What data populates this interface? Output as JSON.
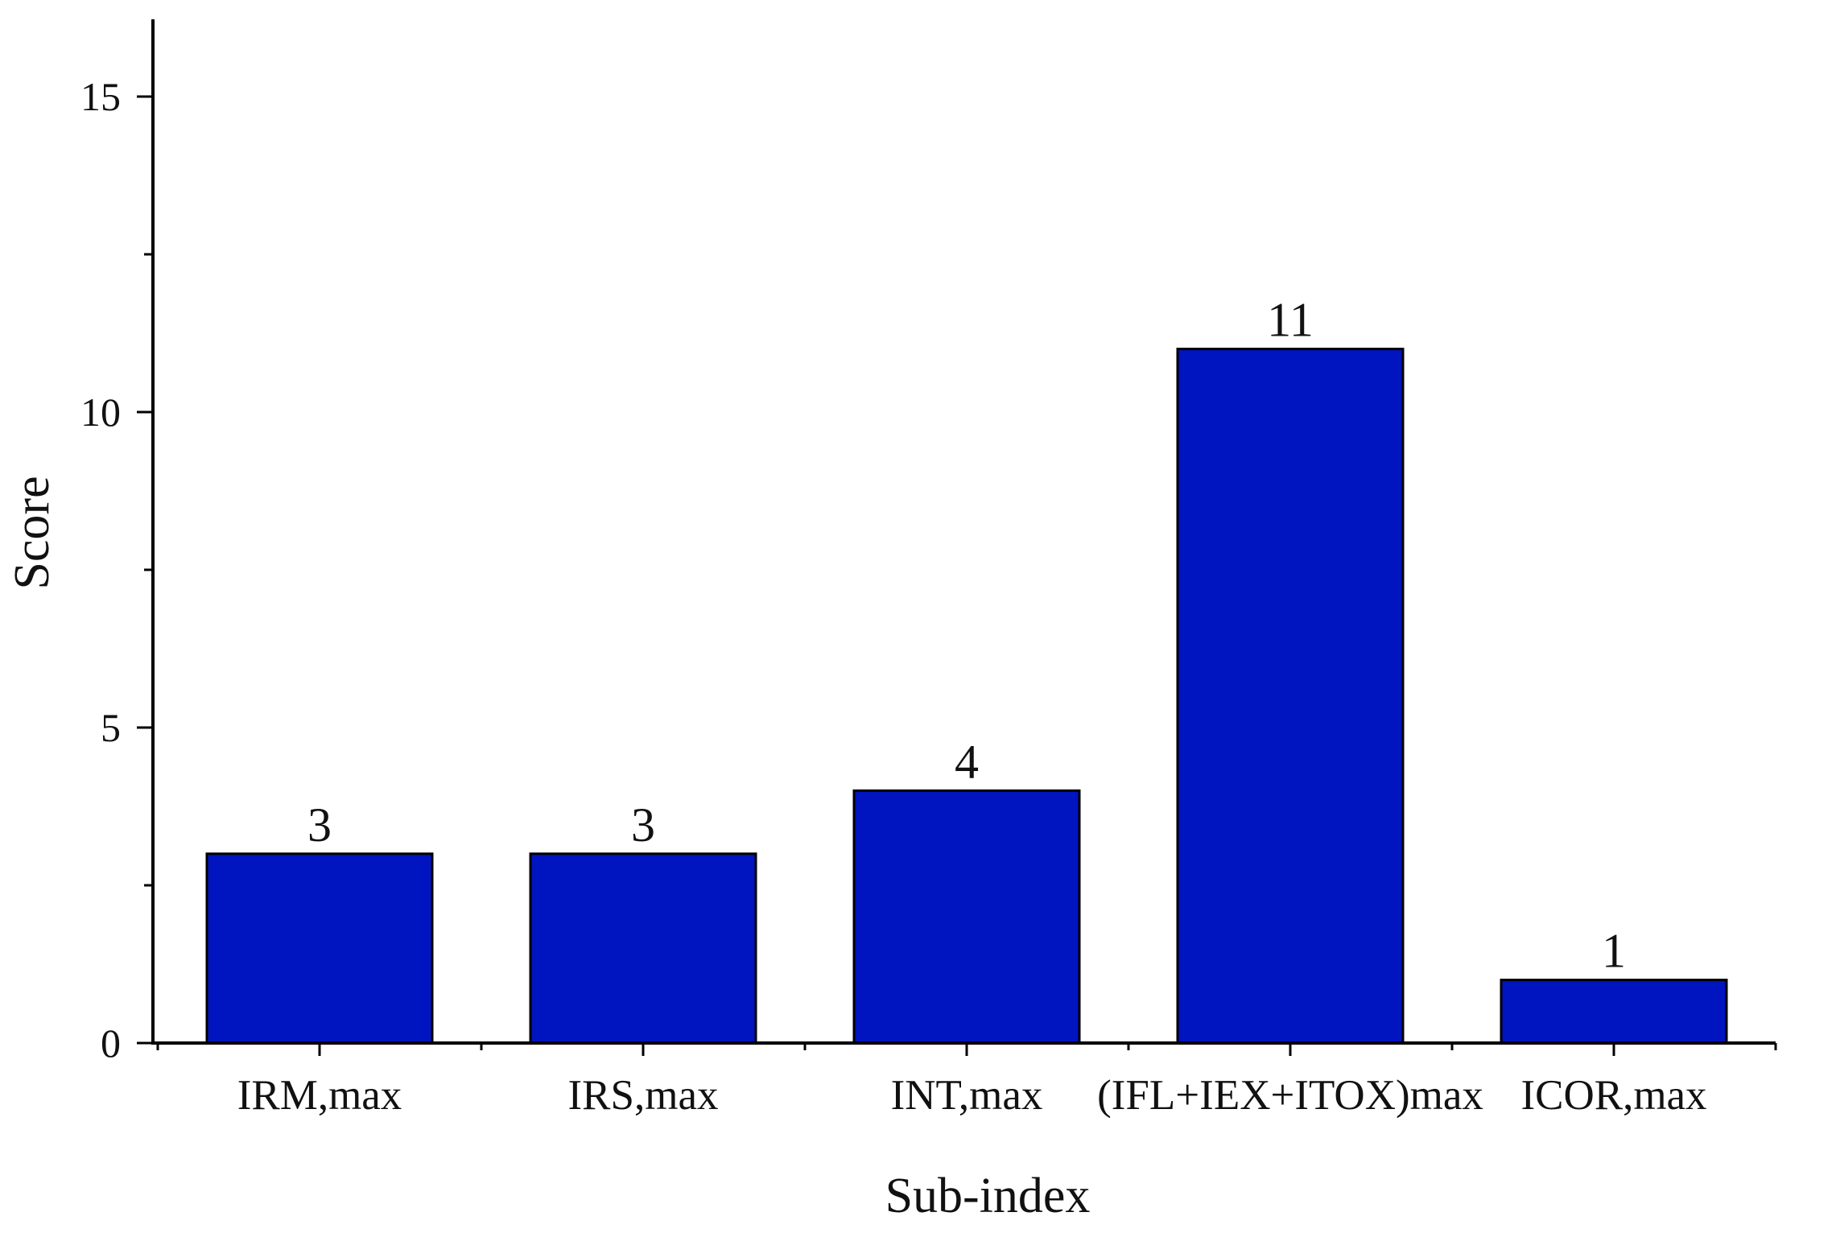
{
  "chart_data": {
    "type": "bar",
    "categories": [
      "IRM,max",
      "IRS,max",
      "INT,max",
      "(IFL+IEX+ITOX)max",
      "ICOR,max"
    ],
    "values": [
      3,
      3,
      4,
      11,
      1
    ],
    "data_labels": [
      "3",
      "3",
      "4",
      "11",
      "1"
    ],
    "title": "",
    "xlabel": "Sub-index",
    "ylabel": "Score",
    "ylim": [
      0,
      16.25
    ],
    "yticks": [
      0,
      5,
      10,
      15
    ],
    "ytick_labels": [
      "0",
      "5",
      "10",
      "15"
    ],
    "grid": false,
    "legend": "none",
    "bar_color": "#0015C0",
    "bar_edge_color": "#000000",
    "axis_color": "#000000"
  }
}
